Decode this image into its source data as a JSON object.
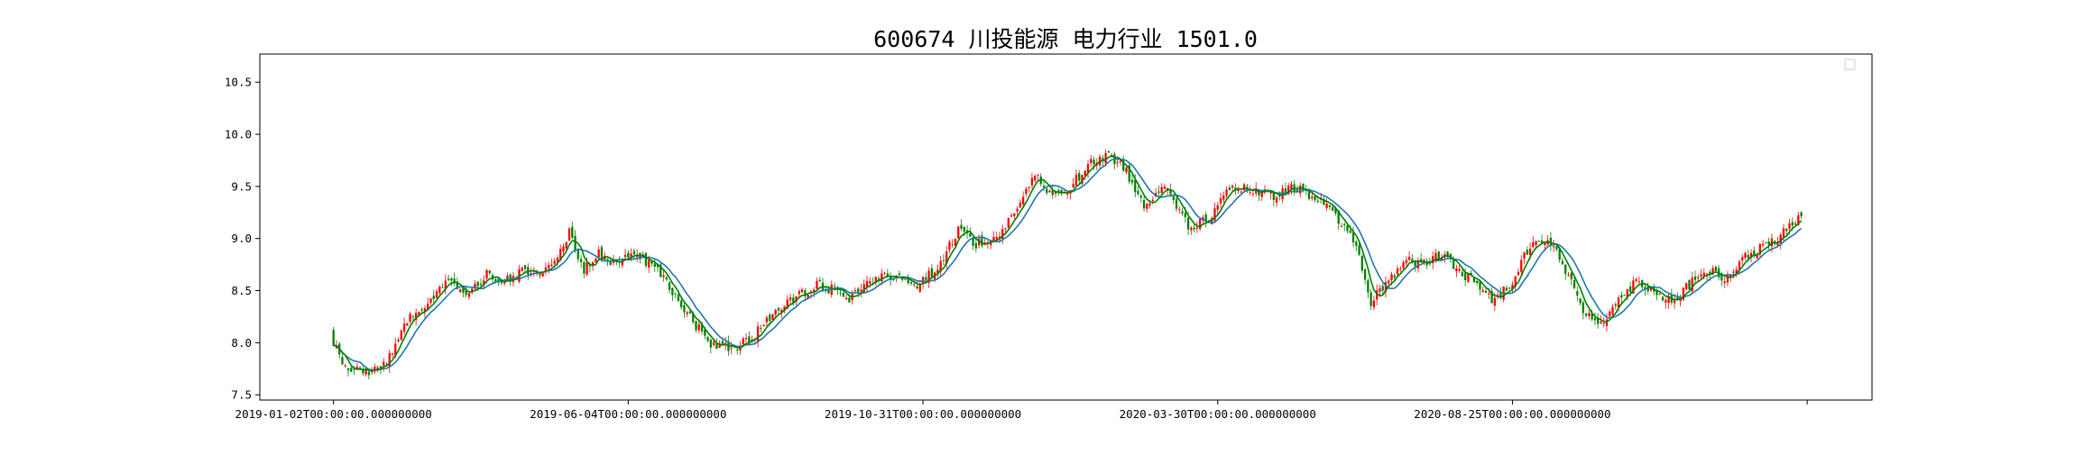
{
  "chart_data": {
    "type": "candlestick",
    "title": "600674 川投能源 电力行业 1501.0",
    "xlabel": "",
    "ylabel": "",
    "x_tick_labels": [
      "2019-01-02T00:00:00.000000000",
      "2019-06-04T00:00:00.000000000",
      "2019-10-31T00:00:00.000000000",
      "2020-03-30T00:00:00.000000000",
      "2020-08-25T00:00:00.000000000",
      ""
    ],
    "x_tick_index": [
      0,
      100,
      200,
      300,
      400,
      500
    ],
    "y_ticks": [
      7.5,
      8.0,
      8.5,
      9.0,
      9.5,
      10.0,
      10.5
    ],
    "y_tick_labels": [
      "7.5",
      "8.0",
      "8.5",
      "9.0",
      "9.5",
      "10.0",
      "10.5"
    ],
    "ylim": [
      7.45,
      10.77
    ],
    "xlim": [
      -25,
      522
    ],
    "n_bars": 499,
    "legend": {
      "position": "top-right",
      "entries": []
    },
    "grid": false,
    "colors": {
      "up": "#ff0000",
      "down": "#008000",
      "ma_short": "#008000",
      "ma_long": "#1f77b4"
    },
    "close_path_keypoints": [
      [
        0,
        8.0
      ],
      [
        3,
        7.78
      ],
      [
        12,
        7.7
      ],
      [
        18,
        7.8
      ],
      [
        24,
        8.2
      ],
      [
        30,
        8.3
      ],
      [
        38,
        8.6
      ],
      [
        45,
        8.45
      ],
      [
        52,
        8.65
      ],
      [
        58,
        8.6
      ],
      [
        65,
        8.7
      ],
      [
        70,
        8.65
      ],
      [
        75,
        8.8
      ],
      [
        80,
        9.05
      ],
      [
        85,
        8.7
      ],
      [
        90,
        8.85
      ],
      [
        96,
        8.75
      ],
      [
        102,
        8.85
      ],
      [
        108,
        8.75
      ],
      [
        115,
        8.5
      ],
      [
        122,
        8.2
      ],
      [
        128,
        8.0
      ],
      [
        135,
        7.95
      ],
      [
        142,
        8.05
      ],
      [
        150,
        8.3
      ],
      [
        158,
        8.45
      ],
      [
        164,
        8.55
      ],
      [
        170,
        8.5
      ],
      [
        175,
        8.4
      ],
      [
        182,
        8.6
      ],
      [
        190,
        8.65
      ],
      [
        197,
        8.55
      ],
      [
        205,
        8.7
      ],
      [
        212,
        9.1
      ],
      [
        218,
        8.95
      ],
      [
        225,
        9.0
      ],
      [
        232,
        9.3
      ],
      [
        238,
        9.6
      ],
      [
        244,
        9.4
      ],
      [
        250,
        9.5
      ],
      [
        256,
        9.7
      ],
      [
        262,
        9.8
      ],
      [
        268,
        9.7
      ],
      [
        275,
        9.3
      ],
      [
        282,
        9.55
      ],
      [
        290,
        9.1
      ],
      [
        297,
        9.2
      ],
      [
        305,
        9.5
      ],
      [
        312,
        9.45
      ],
      [
        320,
        9.4
      ],
      [
        326,
        9.5
      ],
      [
        332,
        9.4
      ],
      [
        338,
        9.3
      ],
      [
        346,
        9.0
      ],
      [
        352,
        8.4
      ],
      [
        358,
        8.6
      ],
      [
        364,
        8.8
      ],
      [
        370,
        8.75
      ],
      [
        376,
        8.85
      ],
      [
        382,
        8.7
      ],
      [
        388,
        8.55
      ],
      [
        394,
        8.4
      ],
      [
        400,
        8.6
      ],
      [
        406,
        8.95
      ],
      [
        412,
        9.0
      ],
      [
        418,
        8.7
      ],
      [
        424,
        8.3
      ],
      [
        430,
        8.2
      ],
      [
        436,
        8.4
      ],
      [
        442,
        8.6
      ],
      [
        448,
        8.5
      ],
      [
        454,
        8.4
      ],
      [
        460,
        8.55
      ],
      [
        466,
        8.7
      ],
      [
        472,
        8.6
      ],
      [
        478,
        8.8
      ],
      [
        484,
        8.9
      ],
      [
        490,
        9.0
      ],
      [
        498,
        9.2
      ]
    ]
  }
}
